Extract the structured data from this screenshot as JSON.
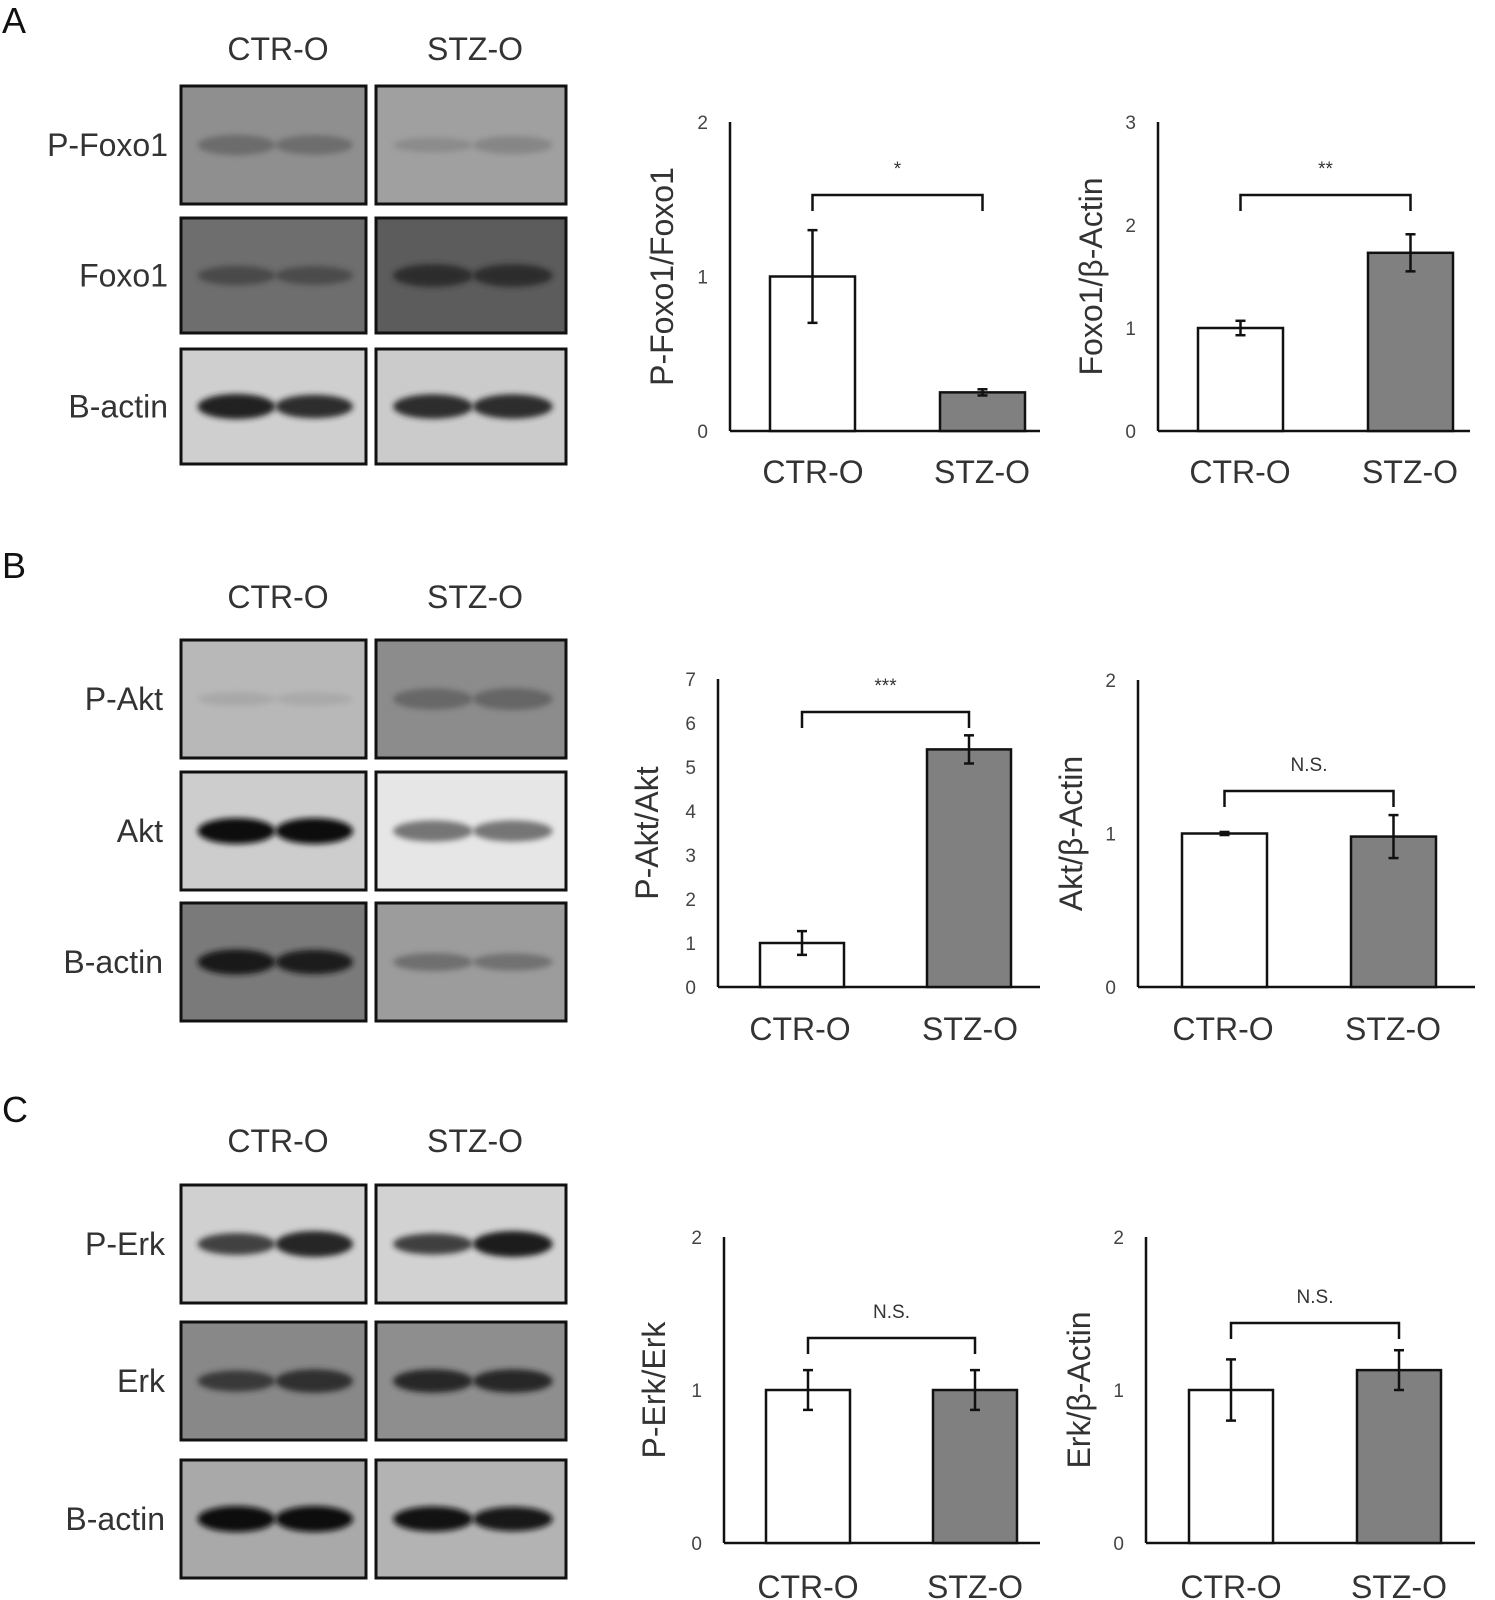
{
  "panels": [
    {
      "label": "A",
      "blot": {
        "groups": [
          "CTR-O",
          "STZ-O"
        ],
        "rows": [
          {
            "label": "P-Foxo1",
            "bg": [
              "#8f8f8f",
              "#a0a0a0"
            ],
            "band": [
              "#626262",
              "#7a7a7a"
            ],
            "strength": [
              [
                0.65,
                0.6
              ],
              [
                0.3,
                0.5
              ]
            ]
          },
          {
            "label": "Foxo1",
            "bg": [
              "#6e6e6e",
              "#5c5c5c"
            ],
            "band": [
              "#3d3d3d",
              "#262626"
            ],
            "strength": [
              [
                0.6,
                0.55
              ],
              [
                0.8,
                0.8
              ]
            ]
          },
          {
            "label": "B-actin",
            "bg": [
              "#cfcfcf",
              "#cbcbcb"
            ],
            "band": [
              "#1f1f1f",
              "#222222"
            ],
            "strength": [
              [
                0.95,
                0.85
              ],
              [
                0.9,
                0.9
              ]
            ]
          }
        ]
      }
    },
    {
      "label": "B",
      "blot": {
        "groups": [
          "CTR-O",
          "STZ-O"
        ],
        "rows": [
          {
            "label": "P-Akt",
            "bg": [
              "#b8b8b8",
              "#8c8c8c"
            ],
            "band": [
              "#9a9a9a",
              "#5e5e5e"
            ],
            "strength": [
              [
                0.25,
                0.2
              ],
              [
                0.7,
                0.75
              ]
            ]
          },
          {
            "label": "Akt",
            "bg": [
              "#cdcdcd",
              "#e6e6e6"
            ],
            "band": [
              "#0d0d0d",
              "#5a5a5a"
            ],
            "strength": [
              [
                1.0,
                1.0
              ],
              [
                0.7,
                0.7
              ]
            ]
          },
          {
            "label": "B-actin",
            "bg": [
              "#7a7a7a",
              "#9c9c9c"
            ],
            "band": [
              "#141414",
              "#5a5a5a"
            ],
            "strength": [
              [
                0.95,
                0.9
              ],
              [
                0.5,
                0.45
              ]
            ]
          }
        ]
      }
    },
    {
      "label": "C",
      "blot": {
        "groups": [
          "CTR-O",
          "STZ-O"
        ],
        "rows": [
          {
            "label": "P-Erk",
            "bg": [
              "#d0d0d0",
              "#d2d2d2"
            ],
            "band": [
              "#262626",
              "#1a1a1a"
            ],
            "strength": [
              [
                0.75,
                1.0
              ],
              [
                0.7,
                1.0
              ]
            ]
          },
          {
            "label": "Erk",
            "bg": [
              "#888888",
              "#8e8e8e"
            ],
            "band": [
              "#262626",
              "#1c1c1c"
            ],
            "strength": [
              [
                0.7,
                0.85
              ],
              [
                0.85,
                0.85
              ]
            ]
          },
          {
            "label": "B-actin",
            "bg": [
              "#a9a9a9",
              "#b3b3b3"
            ],
            "band": [
              "#080808",
              "#0e0e0e"
            ],
            "strength": [
              [
                1.0,
                1.0
              ],
              [
                0.95,
                0.9
              ]
            ]
          }
        ]
      }
    }
  ],
  "chart_data": [
    {
      "type": "bar",
      "panel": "A",
      "categories": [
        "CTR-O",
        "STZ-O"
      ],
      "values": [
        1.0,
        0.25
      ],
      "errors": [
        0.3,
        0.02
      ],
      "ylabel": "P-Foxo1/Foxo1",
      "ylim": [
        0,
        2
      ],
      "yticks": [
        0,
        1,
        2
      ],
      "significance": "*",
      "colors": [
        "#ffffff",
        "#808080"
      ]
    },
    {
      "type": "bar",
      "panel": "A",
      "categories": [
        "CTR-O",
        "STZ-O"
      ],
      "values": [
        1.0,
        1.73
      ],
      "errors": [
        0.07,
        0.18
      ],
      "ylabel": "Foxo1/β-Actin",
      "ylim": [
        0,
        3
      ],
      "yticks": [
        0,
        1,
        2,
        3
      ],
      "significance": "**",
      "colors": [
        "#ffffff",
        "#808080"
      ]
    },
    {
      "type": "bar",
      "panel": "B",
      "categories": [
        "CTR-O",
        "STZ-O"
      ],
      "values": [
        1.0,
        5.4
      ],
      "errors": [
        0.27,
        0.32
      ],
      "ylabel": "P-Akt/Akt",
      "ylim": [
        0,
        7
      ],
      "yticks": [
        0,
        1,
        2,
        3,
        4,
        5,
        6,
        7
      ],
      "significance": "***",
      "colors": [
        "#ffffff",
        "#808080"
      ]
    },
    {
      "type": "bar",
      "panel": "B",
      "categories": [
        "CTR-O",
        "STZ-O"
      ],
      "values": [
        1.0,
        0.98
      ],
      "errors": [
        0.01,
        0.14
      ],
      "ylabel": "Akt/β-Actin",
      "ylim": [
        0,
        2
      ],
      "yticks": [
        0,
        1,
        2
      ],
      "significance": "N.S.",
      "colors": [
        "#ffffff",
        "#808080"
      ]
    },
    {
      "type": "bar",
      "panel": "C",
      "categories": [
        "CTR-O",
        "STZ-O"
      ],
      "values": [
        1.0,
        1.0
      ],
      "errors": [
        0.13,
        0.13
      ],
      "ylabel": "P-Erk/Erk",
      "ylim": [
        0,
        2
      ],
      "yticks": [
        0,
        1,
        2
      ],
      "significance": "N.S.",
      "colors": [
        "#ffffff",
        "#808080"
      ]
    },
    {
      "type": "bar",
      "panel": "C",
      "categories": [
        "CTR-O",
        "STZ-O"
      ],
      "values": [
        1.0,
        1.13
      ],
      "errors": [
        0.2,
        0.13
      ],
      "ylabel": "Erk/β-Actin",
      "ylim": [
        0,
        2
      ],
      "yticks": [
        0,
        1,
        2
      ],
      "significance": "N.S.",
      "colors": [
        "#ffffff",
        "#808080"
      ]
    }
  ]
}
